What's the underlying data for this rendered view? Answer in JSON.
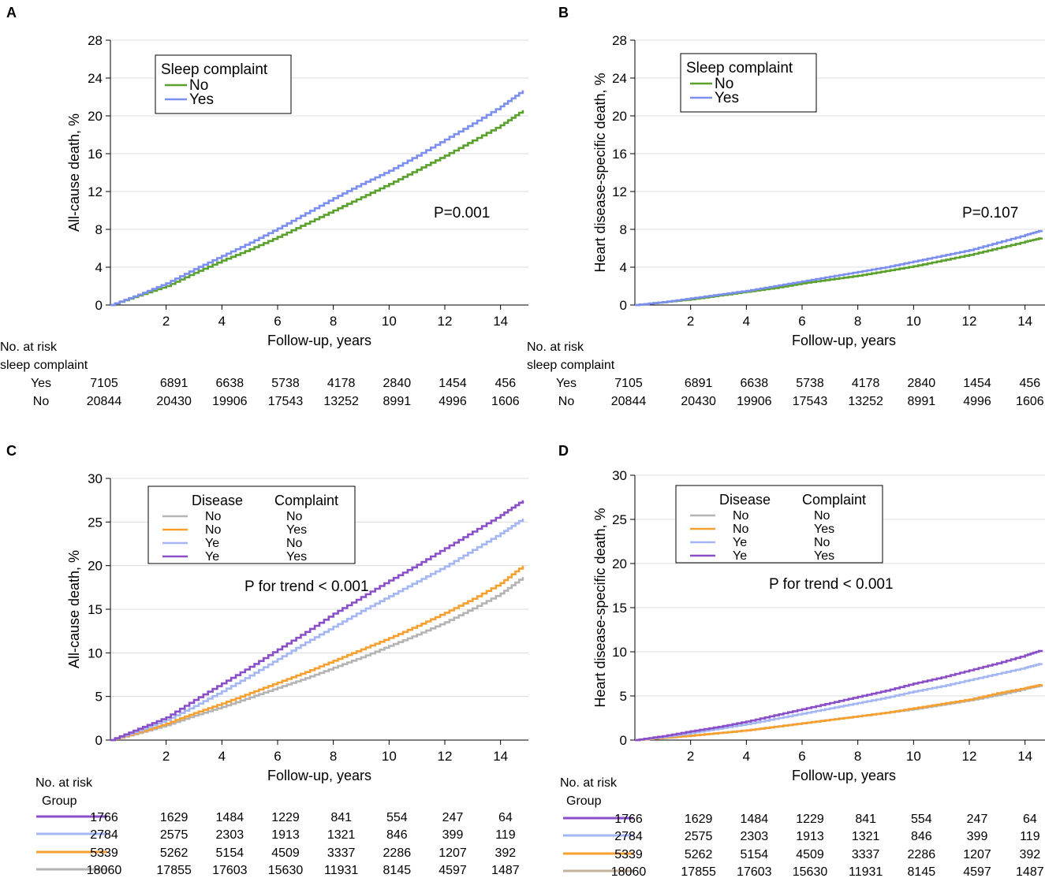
{
  "colors": {
    "green": "#5aa02c",
    "blue": "#7b8ff0",
    "gray": "#b4b4b4",
    "orange": "#f7a030",
    "lightblue": "#a4b6f4",
    "purple": "#8a4fc8",
    "tan": "#c4b29a",
    "grid": "#dcdcdc"
  },
  "chart_data": [
    {
      "panel": "A",
      "type": "line",
      "xlabel": "Follow-up, years",
      "ylabel": "All-cause death, %",
      "xticks": [
        2,
        4,
        6,
        8,
        10,
        12,
        14
      ],
      "yticks": [
        0,
        4,
        8,
        12,
        16,
        20,
        24,
        28
      ],
      "xlim": [
        0,
        15
      ],
      "ylim": [
        0,
        28
      ],
      "annotation": "P=0.001",
      "legend": {
        "title": "Sleep complaint",
        "entries": [
          {
            "label": "No",
            "color_key": "green"
          },
          {
            "label": "Yes",
            "color_key": "blue"
          }
        ]
      },
      "series": [
        {
          "name": "No",
          "color_key": "green",
          "x": [
            0,
            1,
            2,
            3,
            4,
            5,
            6,
            7,
            8,
            9,
            10,
            11,
            12,
            13,
            14,
            14.8
          ],
          "values": [
            0,
            1.0,
            2.0,
            3.4,
            4.7,
            5.9,
            7.2,
            8.6,
            10.0,
            11.4,
            12.8,
            14.3,
            15.8,
            17.4,
            19.0,
            20.6
          ]
        },
        {
          "name": "Yes",
          "color_key": "blue",
          "x": [
            0,
            1,
            2,
            3,
            4,
            5,
            6,
            7,
            8,
            9,
            10,
            11,
            12,
            13,
            14,
            14.8
          ],
          "values": [
            0,
            1.1,
            2.3,
            3.8,
            5.2,
            6.6,
            8.1,
            9.7,
            11.3,
            12.8,
            14.2,
            15.8,
            17.5,
            19.2,
            21.0,
            22.7
          ]
        }
      ],
      "risk_table": {
        "header": [
          "No. at risk",
          "sleep complaint"
        ],
        "rows": [
          {
            "label": "Yes",
            "values": [
              "7105",
              "6891",
              "6638",
              "5738",
              "4178",
              "2840",
              "1454",
              "456"
            ]
          },
          {
            "label": "No",
            "values": [
              "20844",
              "20430",
              "19906",
              "17543",
              "13252",
              "8991",
              "4996",
              "1606"
            ]
          }
        ]
      }
    },
    {
      "panel": "B",
      "type": "line",
      "xlabel": "Follow-up, years",
      "ylabel": "Heart disease-specific death, %",
      "xticks": [
        2,
        4,
        6,
        8,
        10,
        12,
        14
      ],
      "yticks": [
        0,
        4,
        8,
        12,
        16,
        20,
        24,
        28
      ],
      "xlim": [
        0,
        15
      ],
      "ylim": [
        0,
        28
      ],
      "annotation": "P=0.107",
      "legend": {
        "title": "Sleep complaint",
        "entries": [
          {
            "label": "No",
            "color_key": "green"
          },
          {
            "label": "Yes",
            "color_key": "blue"
          }
        ]
      },
      "series": [
        {
          "name": "No",
          "color_key": "green",
          "x": [
            0,
            1,
            2,
            3,
            4,
            5,
            6,
            7,
            8,
            9,
            10,
            11,
            12,
            13,
            14,
            14.6
          ],
          "values": [
            0,
            0.3,
            0.6,
            1.0,
            1.4,
            1.8,
            2.3,
            2.7,
            3.1,
            3.6,
            4.1,
            4.7,
            5.3,
            6.0,
            6.7,
            7.1
          ]
        },
        {
          "name": "Yes",
          "color_key": "blue",
          "x": [
            0,
            1,
            2,
            3,
            4,
            5,
            6,
            7,
            8,
            9,
            10,
            11,
            12,
            13,
            14,
            14.6
          ],
          "values": [
            0,
            0.3,
            0.7,
            1.1,
            1.5,
            2.0,
            2.5,
            3.0,
            3.5,
            4.0,
            4.6,
            5.2,
            5.8,
            6.6,
            7.4,
            7.9
          ]
        }
      ],
      "risk_table": {
        "header": [
          "No. at risk",
          "sleep complaint"
        ],
        "rows": [
          {
            "label": "Yes",
            "values": [
              "7105",
              "6891",
              "6638",
              "5738",
              "4178",
              "2840",
              "1454",
              "456"
            ]
          },
          {
            "label": "No",
            "values": [
              "20844",
              "20430",
              "19906",
              "17543",
              "13252",
              "8991",
              "4996",
              "1606"
            ]
          }
        ]
      }
    },
    {
      "panel": "C",
      "type": "line",
      "xlabel": "Follow-up, years",
      "ylabel": "All-cause death, %",
      "xticks": [
        2,
        4,
        6,
        8,
        10,
        12,
        14
      ],
      "yticks": [
        0,
        5,
        10,
        15,
        20,
        25,
        30
      ],
      "xlim": [
        0,
        15
      ],
      "ylim": [
        0,
        30
      ],
      "annotation": "P for trend < 0.001",
      "legend": {
        "headers": [
          "Disease",
          "Complaint"
        ],
        "entries": [
          {
            "disease": "No",
            "complaint": "No",
            "color_key": "gray"
          },
          {
            "disease": "No",
            "complaint": "Yes",
            "color_key": "orange"
          },
          {
            "disease": "Ye",
            "complaint": "No",
            "color_key": "lightblue"
          },
          {
            "disease": "Ye",
            "complaint": "Yes",
            "color_key": "purple"
          }
        ]
      },
      "series": [
        {
          "name": "No/No",
          "color_key": "gray",
          "x": [
            0,
            1,
            2,
            3,
            4,
            5,
            6,
            7,
            8,
            9,
            10,
            11,
            12,
            13,
            14,
            14.8
          ],
          "values": [
            0,
            0.8,
            1.7,
            2.8,
            3.8,
            4.9,
            6.0,
            7.1,
            8.3,
            9.5,
            10.8,
            12.1,
            13.5,
            15.1,
            16.8,
            18.7
          ]
        },
        {
          "name": "No/Yes",
          "color_key": "orange",
          "x": [
            0,
            1,
            2,
            3,
            4,
            5,
            6,
            7,
            8,
            9,
            10,
            11,
            12,
            13,
            14,
            14.8
          ],
          "values": [
            0,
            0.9,
            1.9,
            3.1,
            4.2,
            5.4,
            6.6,
            7.8,
            9.1,
            10.4,
            11.7,
            13.1,
            14.6,
            16.2,
            18.0,
            20.0
          ]
        },
        {
          "name": "Ye/No",
          "color_key": "lightblue",
          "x": [
            0,
            1,
            2,
            3,
            4,
            5,
            6,
            7,
            8,
            9,
            10,
            11,
            12,
            13,
            14,
            14.8
          ],
          "values": [
            0,
            1.1,
            2.3,
            3.9,
            5.6,
            7.4,
            9.3,
            11.2,
            13.0,
            14.8,
            16.5,
            18.2,
            19.9,
            21.8,
            23.7,
            25.4
          ]
        },
        {
          "name": "Ye/Yes",
          "color_key": "purple",
          "x": [
            0,
            1,
            2,
            3,
            4,
            5,
            6,
            7,
            8,
            9,
            10,
            11,
            12,
            13,
            14,
            14.8
          ],
          "values": [
            0,
            1.3,
            2.6,
            4.6,
            6.5,
            8.4,
            10.4,
            12.4,
            14.5,
            16.4,
            18.3,
            20.1,
            22.0,
            23.9,
            25.8,
            27.5
          ]
        }
      ],
      "risk_table": {
        "header": [
          "No. at risk",
          "Group"
        ],
        "rows": [
          {
            "color_key": "purple",
            "values": [
              "1766",
              "1629",
              "1484",
              "1229",
              "841",
              "554",
              "247",
              "64"
            ]
          },
          {
            "color_key": "lightblue",
            "values": [
              "2784",
              "2575",
              "2303",
              "1913",
              "1321",
              "846",
              "399",
              "119"
            ]
          },
          {
            "color_key": "orange",
            "values": [
              "5339",
              "5262",
              "5154",
              "4509",
              "3337",
              "2286",
              "1207",
              "392"
            ]
          },
          {
            "color_key": "gray",
            "values": [
              "18060",
              "17855",
              "17603",
              "15630",
              "11931",
              "8145",
              "4597",
              "1487"
            ]
          }
        ]
      }
    },
    {
      "panel": "D",
      "type": "line",
      "xlabel": "Follow-up, years",
      "ylabel": "Heart disease-specific death, %",
      "xticks": [
        2,
        4,
        6,
        8,
        10,
        12,
        14
      ],
      "yticks": [
        0,
        5,
        10,
        15,
        20,
        25,
        30
      ],
      "xlim": [
        0,
        15
      ],
      "ylim": [
        0,
        30
      ],
      "annotation": "P for trend < 0.001",
      "legend": {
        "headers": [
          "Disease",
          "Complaint"
        ],
        "entries": [
          {
            "disease": "No",
            "complaint": "No",
            "color_key": "gray"
          },
          {
            "disease": "No",
            "complaint": "Yes",
            "color_key": "orange"
          },
          {
            "disease": "Ye",
            "complaint": "No",
            "color_key": "lightblue"
          },
          {
            "disease": "Ye",
            "complaint": "Yes",
            "color_key": "purple"
          }
        ]
      },
      "series": [
        {
          "name": "No/No",
          "color_key": "gray",
          "x": [
            0,
            1,
            2,
            3,
            4,
            5,
            6,
            7,
            8,
            9,
            10,
            11,
            12,
            13,
            14,
            14.6
          ],
          "values": [
            0,
            0.25,
            0.5,
            0.8,
            1.1,
            1.5,
            1.9,
            2.3,
            2.7,
            3.1,
            3.5,
            4.0,
            4.5,
            5.1,
            5.8,
            6.2
          ]
        },
        {
          "name": "No/Yes",
          "color_key": "orange",
          "x": [
            0,
            1,
            2,
            3,
            4,
            5,
            6,
            7,
            8,
            9,
            10,
            11,
            12,
            13,
            14,
            14.6
          ],
          "values": [
            0,
            0.25,
            0.5,
            0.8,
            1.1,
            1.5,
            1.9,
            2.3,
            2.7,
            3.1,
            3.6,
            4.1,
            4.6,
            5.3,
            5.9,
            6.3
          ]
        },
        {
          "name": "Ye/No",
          "color_key": "lightblue",
          "x": [
            0,
            1,
            2,
            3,
            4,
            5,
            6,
            7,
            8,
            9,
            10,
            11,
            12,
            13,
            14,
            14.6
          ],
          "values": [
            0,
            0.35,
            0.8,
            1.3,
            1.8,
            2.4,
            3.0,
            3.6,
            4.2,
            4.8,
            5.5,
            6.1,
            6.8,
            7.5,
            8.2,
            8.7
          ]
        },
        {
          "name": "Ye/Yes",
          "color_key": "purple",
          "x": [
            0,
            1,
            2,
            3,
            4,
            5,
            6,
            7,
            8,
            9,
            10,
            11,
            12,
            13,
            14,
            14.6
          ],
          "values": [
            0,
            0.45,
            1.0,
            1.5,
            2.1,
            2.8,
            3.5,
            4.2,
            4.9,
            5.6,
            6.4,
            7.1,
            7.9,
            8.7,
            9.6,
            10.2
          ]
        }
      ],
      "risk_table": {
        "header": [
          "No. at risk",
          "Group"
        ],
        "rows": [
          {
            "color_key": "purple",
            "values": [
              "1766",
              "1629",
              "1484",
              "1229",
              "841",
              "554",
              "247",
              "64"
            ]
          },
          {
            "color_key": "lightblue",
            "values": [
              "2784",
              "2575",
              "2303",
              "1913",
              "1321",
              "846",
              "399",
              "119"
            ]
          },
          {
            "color_key": "orange",
            "values": [
              "5339",
              "5262",
              "5154",
              "4509",
              "3337",
              "2286",
              "1207",
              "392"
            ]
          },
          {
            "color_key": "tan",
            "values": [
              "18060",
              "17855",
              "17603",
              "15630",
              "11931",
              "8145",
              "4597",
              "1487"
            ]
          }
        ]
      }
    }
  ]
}
